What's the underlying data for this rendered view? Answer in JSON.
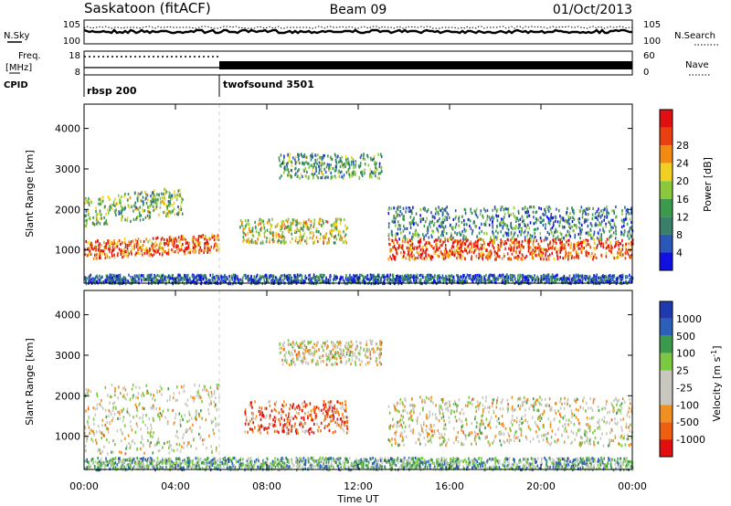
{
  "header": {
    "station": "Saskatoon (fitACF)",
    "beam": "Beam 09",
    "date": "01/Oct/2013"
  },
  "strip": {
    "nsky_label": "N.Sky",
    "nsearch_label": "N.Search",
    "noise_tick_top": "10^5",
    "noise_tick_bottom": "10^0",
    "noise_tick_top_right": "10^5",
    "noise_tick_bottom_right": "10^0",
    "freq_label_1": "Freq.",
    "freq_label_2": "[MHz]",
    "freq_tick_top": "18",
    "freq_tick_bottom": "8",
    "nave_label": "Nave",
    "nave_tick_top": "60",
    "nave_tick_bottom": "0",
    "cpid_label": "CPID",
    "cpid_programs": [
      {
        "name": "rbsp 200",
        "start_hour": 0
      },
      {
        "name": "twofsound 3501",
        "start_hour": 6.0
      }
    ]
  },
  "colors": {
    "power": [
      "#1010e0",
      "#2b57b8",
      "#3a7f6a",
      "#3c9a4e",
      "#8cc83c",
      "#f0d020",
      "#f08a10",
      "#e84010",
      "#e01010"
    ],
    "velocity": [
      "#e01010",
      "#ee6010",
      "#f09020",
      "#c8c8c0",
      "#c8c8c0",
      "#7cc840",
      "#3c9a4e",
      "#2b5fb8",
      "#1f3ab0"
    ]
  },
  "chart_data": [
    {
      "type": "heatmap",
      "name": "power",
      "xlabel": "",
      "ylabel": "Slant Range [km]",
      "xlim": [
        0,
        24
      ],
      "ylim": [
        180,
        4600
      ],
      "y_ticks": [
        "1000",
        "2000",
        "3000",
        "4000"
      ],
      "colorbar_label": "Power [dB]",
      "colorbar_ticks": [
        "4",
        "8",
        "12",
        "16",
        "20",
        "24",
        "28"
      ],
      "scatter_regions": [
        {
          "t0": 0.0,
          "t1": 4.3,
          "r0": 1600,
          "r1": 2300,
          "slope": 300,
          "level": 0.45
        },
        {
          "t0": 0.0,
          "t1": 5.9,
          "r0": 800,
          "r1": 1250,
          "slope": 180,
          "level": 0.8
        },
        {
          "t0": 6.8,
          "t1": 11.5,
          "r0": 1200,
          "r1": 1800,
          "slope": 0,
          "level": 0.55
        },
        {
          "t0": 8.5,
          "t1": 13.0,
          "r0": 2800,
          "r1": 3400,
          "slope": 0,
          "level": 0.35
        },
        {
          "t0": 13.3,
          "t1": 24.0,
          "r0": 800,
          "r1": 1300,
          "slope": 0,
          "level": 0.85
        },
        {
          "t0": 13.3,
          "t1": 24.0,
          "r0": 1300,
          "r1": 2100,
          "slope": 0,
          "level": 0.3
        },
        {
          "t0": 0.0,
          "t1": 24.0,
          "r0": 200,
          "r1": 420,
          "slope": 0,
          "level": 0.2
        }
      ]
    },
    {
      "type": "heatmap",
      "name": "velocity",
      "xlabel": "Time UT",
      "ylabel": "Slant Range [km]",
      "xlim": [
        0,
        24
      ],
      "ylim": [
        180,
        4600
      ],
      "y_ticks": [
        "1000",
        "2000",
        "3000",
        "4000"
      ],
      "x_ticks": [
        "00:00",
        "04:00",
        "08:00",
        "12:00",
        "16:00",
        "20:00",
        "00:00"
      ],
      "colorbar_label": "Velocity [m s^-1]",
      "colorbar_ticks": [
        "1000",
        "500",
        "100",
        "25",
        "-25",
        "-100",
        "-500",
        "-1000"
      ],
      "scatter_regions": [
        {
          "t0": 0.0,
          "t1": 5.9,
          "r0": 600,
          "r1": 2300,
          "slope": 0,
          "level": 0.45
        },
        {
          "t0": 7.0,
          "t1": 11.5,
          "r0": 1100,
          "r1": 1900,
          "slope": 0,
          "level": 0.15
        },
        {
          "t0": 8.5,
          "t1": 13.0,
          "r0": 2800,
          "r1": 3400,
          "slope": 0,
          "level": 0.45
        },
        {
          "t0": 13.3,
          "t1": 24.0,
          "r0": 800,
          "r1": 2000,
          "slope": 0,
          "level": 0.45
        },
        {
          "t0": 0.0,
          "t1": 24.0,
          "r0": 200,
          "r1": 500,
          "slope": 0,
          "level": 0.65
        }
      ]
    }
  ]
}
